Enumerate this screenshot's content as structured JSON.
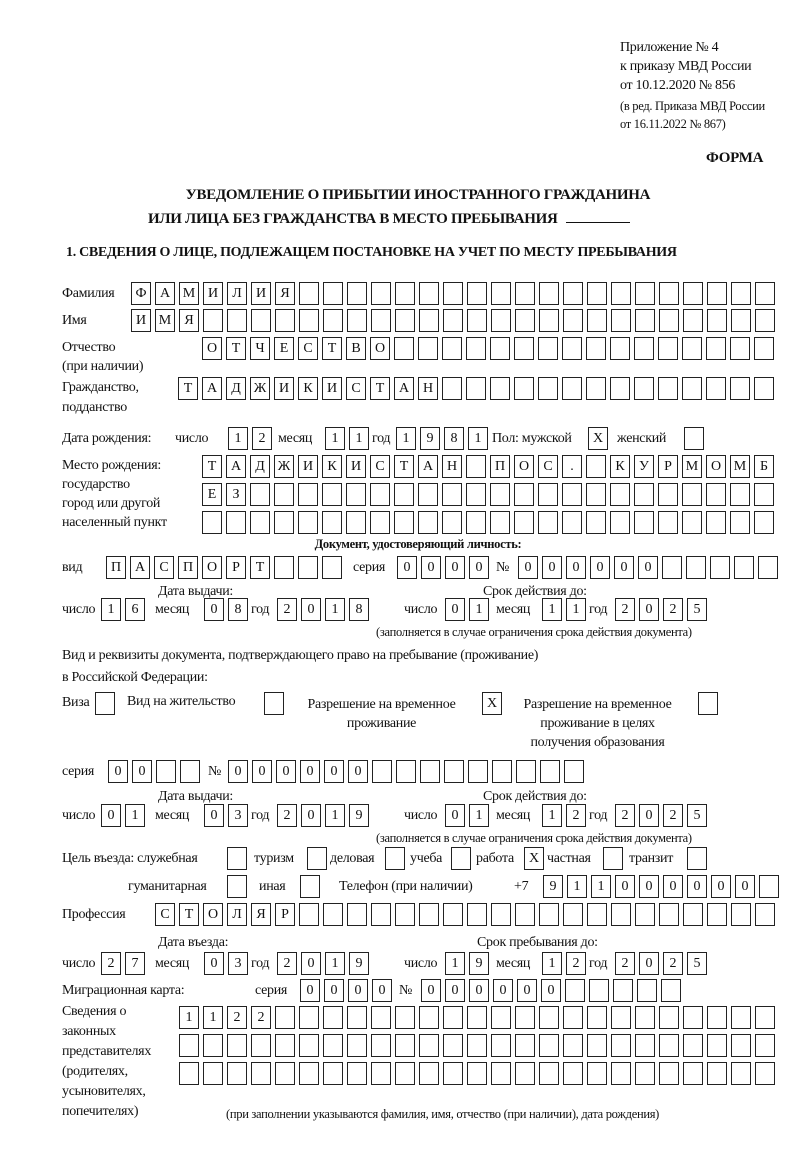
{
  "header": {
    "annex": "Приложение № 4",
    "order": "к приказу МВД России",
    "order_date": "от 10.12.2020 № 856",
    "amend1": "(в ред. Приказа МВД России",
    "amend2": "от 16.11.2022 № 867)",
    "form_label": "ФОРМА",
    "title1": "УВЕДОМЛЕНИЕ О ПРИБЫТИИ ИНОСТРАННОГО ГРАЖДАНИНА",
    "title2": "ИЛИ ЛИЦА БЕЗ ГРАЖДАНСТВА В МЕСТО ПРЕБЫВАНИЯ",
    "section1": "1. СВЕДЕНИЯ О ЛИЦЕ, ПОДЛЕЖАЩЕМ ПОСТАНОВКЕ НА УЧЕТ ПО МЕСТУ ПРЕБЫВАНИЯ"
  },
  "person": {
    "surname": {
      "label": "Фамилия",
      "value": "ФАМИЛИЯ"
    },
    "name": {
      "label": "Имя",
      "value": "ИМЯ"
    },
    "patronymic": {
      "label1": "Отчество",
      "label2": "(при наличии)",
      "value": "ОТЧЕСТВО"
    },
    "citizenship": {
      "label1": "Гражданство,",
      "label2": "подданство",
      "value": "ТАДЖИКИСТАН"
    },
    "birth": {
      "label": "Дата рождения:",
      "day_label": "число",
      "day": "12",
      "month_label": "месяц",
      "month": "11",
      "year_label": "год",
      "year": "1981",
      "sex_label": "Пол: мужской",
      "male": "X",
      "female_label": "женский",
      "female": ""
    },
    "birthplace": {
      "label1": "Место рождения:",
      "label2": "государство",
      "label3": "город или другой",
      "label4": "населенный пункт",
      "line1": "ТАДЖИКИСТАН ПОС. КУРМОМБ",
      "line2": "ЕЗ",
      "line3": ""
    }
  },
  "id_doc": {
    "heading": "Документ, удостоверяющий личность:",
    "type_label": "вид",
    "type": "ПАСПОРТ",
    "series_label": "серия",
    "series": "0000",
    "number_label": "№",
    "number": "000000",
    "issue_label": "Дата выдачи:",
    "valid_label": "Срок действия до:",
    "day_label": "число",
    "month_label": "месяц",
    "year_label": "год",
    "issue_day": "16",
    "issue_month": "08",
    "issue_year": "2018",
    "valid_day": "01",
    "valid_month": "11",
    "valid_year": "2025",
    "note": "(заполняется в случае ограничения срока действия документа)"
  },
  "stay_doc": {
    "intro1": "Вид и реквизиты документа, подтверждающего право на пребывание (проживание)",
    "intro2": "в Российской Федерации:",
    "visa_label": "Виза",
    "visa": "",
    "residence_label": "Вид на жительство",
    "residence": "",
    "trp_label1": "Разрешение на временное",
    "trp_label2": "проживание",
    "trp": "X",
    "trp_edu_label1": "Разрешение на временное",
    "trp_edu_label2": "проживание в целях",
    "trp_edu_label3": "получения образования",
    "trp_edu": "",
    "series_label": "серия",
    "series": "00",
    "number_label": "№",
    "number": "000000",
    "issue_label": "Дата выдачи:",
    "valid_label": "Срок действия до:",
    "issue_day": "01",
    "issue_month": "03",
    "issue_year": "2019",
    "valid_day": "01",
    "valid_month": "12",
    "valid_year": "2025",
    "note": "(заполняется в случае ограничения срока действия документа)"
  },
  "purpose": {
    "label": "Цель въезда: служебная",
    "official": "",
    "tourism_label": "туризм",
    "tourism": "",
    "business_label": "деловая",
    "business": "",
    "study_label": "учеба",
    "study": "",
    "work_label": "работа",
    "work": "X",
    "private_label": "частная",
    "private": "",
    "transit_label": "транзит",
    "transit": "",
    "humanitarian_label": "гуманитарная",
    "humanitarian": "",
    "other_label": "иная",
    "other": ""
  },
  "phone": {
    "label": "Телефон (при наличии)",
    "prefix": "+7",
    "value": "911000000"
  },
  "profession": {
    "label": "Профессия",
    "value": "СТОЛЯР"
  },
  "entry": {
    "entry_label": "Дата въезда:",
    "stay_label": "Срок пребывания до:",
    "entry_day": "27",
    "entry_month": "03",
    "entry_year": "2019",
    "stay_day": "19",
    "stay_month": "12",
    "stay_year": "2025"
  },
  "migration_card": {
    "label": "Миграционная карта:",
    "series_label": "серия",
    "series": "0000",
    "number_label": "№",
    "number": "000000"
  },
  "representatives": {
    "label1": "Сведения о",
    "label2": "законных",
    "label3": "представителях",
    "label4": "(родителях,",
    "label5": "усыновителях,",
    "label6": "попечителях)",
    "line1": "1122",
    "line2": "",
    "line3": "",
    "note": "(при заполнении указываются фамилия, имя, отчество (при наличии), дата рождения)"
  }
}
